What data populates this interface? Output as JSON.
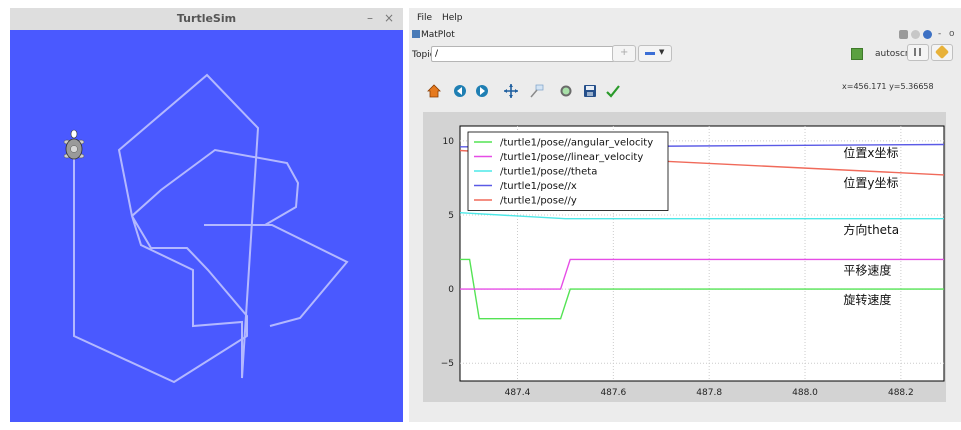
{
  "turtlesim": {
    "title": "TurtleSim",
    "minimize": "–",
    "close": "×",
    "background": "#4a59ff",
    "path_color": "#b3b8ff"
  },
  "rqt": {
    "menu": {
      "file": "File",
      "help": "Help"
    },
    "plugin_label": "MatPlot",
    "topic_label": "Topic",
    "topic_value": "/",
    "autoscroll_label": "autoscroll",
    "cursor_readout": "x=456.171   y=5.36658"
  },
  "chart_data": {
    "type": "line",
    "xlim": [
      487.28,
      488.29
    ],
    "ylim": [
      -6.2,
      11.0
    ],
    "x_ticks": [
      "487.4",
      "487.6",
      "487.8",
      "488.0",
      "488.2"
    ],
    "y_ticks": [
      "10",
      "5",
      "0",
      "−5"
    ],
    "grid": true,
    "legend_position": "top-left",
    "series": [
      {
        "name": "/turtle1/pose//angular_velocity",
        "color": "#54e354",
        "x": [
          487.28,
          487.3,
          487.32,
          487.49,
          487.51,
          488.29
        ],
        "y": [
          2.0,
          2.0,
          -2.0,
          -2.0,
          0.0,
          0.0
        ]
      },
      {
        "name": "/turtle1/pose//linear_velocity",
        "color": "#e64de6",
        "x": [
          487.28,
          487.49,
          487.51,
          488.29
        ],
        "y": [
          0.0,
          0.0,
          2.0,
          2.0
        ]
      },
      {
        "name": "/turtle1/pose//theta",
        "color": "#4de8e8",
        "x": [
          487.28,
          487.5,
          488.29
        ],
        "y": [
          5.15,
          4.75,
          4.75
        ]
      },
      {
        "name": "/turtle1/pose//x",
        "color": "#5a5ae6",
        "x": [
          487.28,
          487.5,
          488.29
        ],
        "y": [
          9.6,
          9.6,
          9.75
        ]
      },
      {
        "name": "/turtle1/pose//y",
        "color": "#f06a5a",
        "x": [
          487.28,
          487.5,
          488.29
        ],
        "y": [
          9.35,
          8.95,
          7.7
        ]
      }
    ],
    "annotations": [
      {
        "text": "位置x坐标",
        "x": 488.08,
        "y": 8.9
      },
      {
        "text": "位置y坐标",
        "x": 488.08,
        "y": 6.9
      },
      {
        "text": "方向theta",
        "x": 488.08,
        "y": 3.7
      },
      {
        "text": "平移速度",
        "x": 488.08,
        "y": 1.0
      },
      {
        "text": "旋转速度",
        "x": 488.08,
        "y": -1.0
      }
    ]
  }
}
